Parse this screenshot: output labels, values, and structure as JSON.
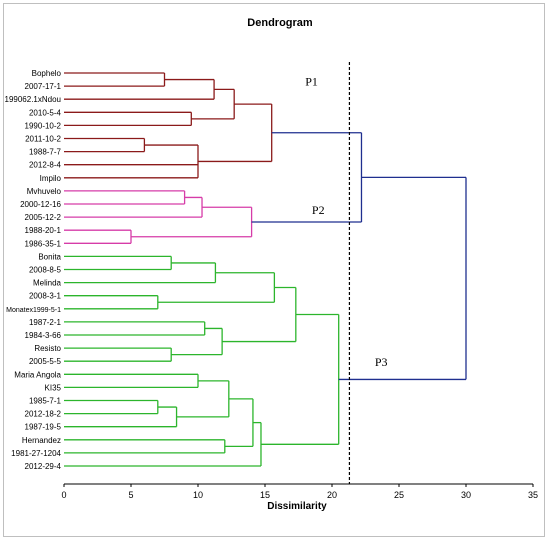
{
  "chart_data": {
    "type": "dendrogram",
    "title": "Dendrogram",
    "xlabel": "Dissimilarity",
    "ylabel": "",
    "xlim": [
      0,
      35
    ],
    "xticks": [
      0,
      5,
      10,
      15,
      20,
      25,
      30,
      35
    ],
    "grid": false,
    "cut_line": {
      "value": 21.3,
      "style": "dashed"
    },
    "colors": {
      "P1": "#8b1a1a",
      "P2": "#d63ca8",
      "P3": "#2cb52c",
      "root": "#1f2f8f",
      "cut": "#000000"
    },
    "cluster_labels": [
      {
        "text": "P1",
        "x": 18,
        "y": 0.95
      },
      {
        "text": "P2",
        "x": 18.5,
        "y": 10.75
      },
      {
        "text": "P3",
        "x": 23.2,
        "y": 22.35
      }
    ],
    "leaves": [
      "Bophelo",
      "2007-17-1",
      "199062.1xNdou",
      "2010-5-4",
      "1990-10-2",
      "2011-10-2",
      "1988-7-7",
      "2012-8-4",
      "Impilo",
      "Mvhuvelo",
      "2000-12-16",
      "2005-12-2",
      "1988-20-1",
      "1986-35-1",
      "Bonita",
      "2008-8-5",
      "Melinda",
      "2008-3-1",
      "Monatex1999-5-1",
      "1987-2-1",
      "1984-3-66",
      "Resisto",
      "2005-5-5",
      "Maria Angola",
      "KI35",
      "1985-7-1",
      "2012-18-2",
      "1987-19-5",
      "Hernandez",
      "1981-27-1204",
      "2012-29-4"
    ],
    "merges": [
      {
        "id": "a1",
        "children": [
          "Bophelo",
          "2007-17-1"
        ],
        "height": 7.5,
        "group": "P1"
      },
      {
        "id": "a2",
        "children": [
          "a1",
          "199062.1xNdou"
        ],
        "height": 11.2,
        "group": "P1"
      },
      {
        "id": "a3",
        "children": [
          "2010-5-4",
          "1990-10-2"
        ],
        "height": 9.5,
        "group": "P1"
      },
      {
        "id": "a4",
        "children": [
          "a2",
          "a3"
        ],
        "height": 12.7,
        "group": "P1"
      },
      {
        "id": "a5",
        "children": [
          "2011-10-2",
          "1988-7-7"
        ],
        "height": 6.0,
        "group": "P1"
      },
      {
        "id": "a6",
        "children": [
          "a5",
          "2012-8-4",
          "Impilo"
        ],
        "height": 10.0,
        "group": "P1"
      },
      {
        "id": "P1",
        "children": [
          "a4",
          "a6"
        ],
        "height": 15.5,
        "group": "P1"
      },
      {
        "id": "b1",
        "children": [
          "Mvhuvelo",
          "2000-12-16"
        ],
        "height": 9.0,
        "group": "P2"
      },
      {
        "id": "b2",
        "children": [
          "b1",
          "2005-12-2"
        ],
        "height": 10.3,
        "group": "P2"
      },
      {
        "id": "b3",
        "children": [
          "1988-20-1",
          "1986-35-1"
        ],
        "height": 5.0,
        "group": "P2"
      },
      {
        "id": "P2",
        "children": [
          "b2",
          "b3"
        ],
        "height": 14.0,
        "group": "P2"
      },
      {
        "id": "c1",
        "children": [
          "Bonita",
          "2008-8-5"
        ],
        "height": 8.0,
        "group": "P3"
      },
      {
        "id": "c2",
        "children": [
          "c1",
          "Melinda"
        ],
        "height": 11.3,
        "group": "P3"
      },
      {
        "id": "c3",
        "children": [
          "2008-3-1",
          "Monatex1999-5-1"
        ],
        "height": 7.0,
        "group": "P3"
      },
      {
        "id": "c4",
        "children": [
          "c2",
          "c3"
        ],
        "height": 15.7,
        "group": "P3"
      },
      {
        "id": "c5",
        "children": [
          "1987-2-1",
          "1984-3-66"
        ],
        "height": 10.5,
        "group": "P3"
      },
      {
        "id": "c6",
        "children": [
          "Resisto",
          "2005-5-5"
        ],
        "height": 8.0,
        "group": "P3"
      },
      {
        "id": "c7",
        "children": [
          "c5",
          "c6"
        ],
        "height": 11.8,
        "group": "P3"
      },
      {
        "id": "c8",
        "children": [
          "c4",
          "c7"
        ],
        "height": 17.3,
        "group": "P3"
      },
      {
        "id": "d1",
        "children": [
          "Maria Angola",
          "KI35"
        ],
        "height": 10.0,
        "group": "P3"
      },
      {
        "id": "d2",
        "children": [
          "1985-7-1",
          "2012-18-2"
        ],
        "height": 7.0,
        "group": "P3"
      },
      {
        "id": "d3",
        "children": [
          "d2",
          "1987-19-5"
        ],
        "height": 8.4,
        "group": "P3"
      },
      {
        "id": "d4",
        "children": [
          "d1",
          "d3"
        ],
        "height": 12.3,
        "group": "P3"
      },
      {
        "id": "d5",
        "children": [
          "Hernandez",
          "1981-27-1204"
        ],
        "height": 12.0,
        "group": "P3"
      },
      {
        "id": "d6",
        "children": [
          "d4",
          "d5"
        ],
        "height": 14.1,
        "group": "P3"
      },
      {
        "id": "d7",
        "children": [
          "d6",
          "2012-29-4"
        ],
        "height": 14.7,
        "group": "P3"
      },
      {
        "id": "P3",
        "children": [
          "c8",
          "d7"
        ],
        "height": 20.5,
        "group": "P3"
      },
      {
        "id": "r1",
        "children": [
          "P1",
          "P2"
        ],
        "height": 22.2,
        "group": "root"
      },
      {
        "id": "root",
        "children": [
          "r1",
          "P3"
        ],
        "height": 30.0,
        "group": "root"
      }
    ]
  }
}
